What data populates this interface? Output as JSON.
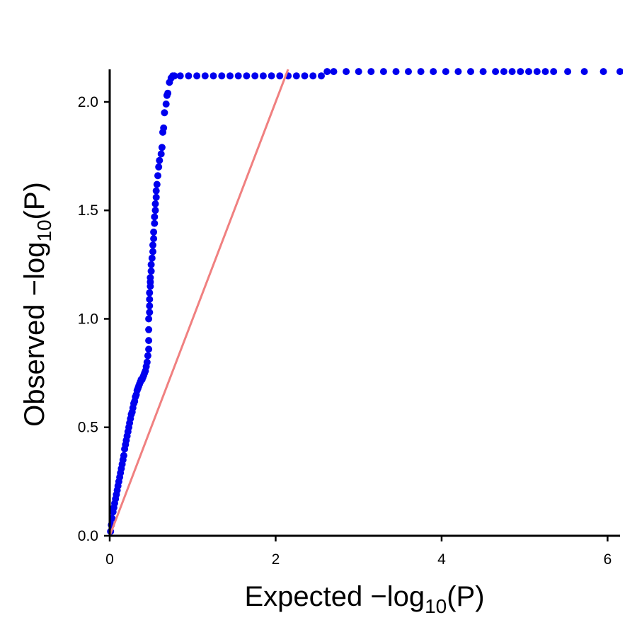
{
  "chart_data": {
    "type": "scatter",
    "title": "",
    "xlabel": {
      "prefix": "Expected  −log",
      "sub": "10",
      "suffix": "(P)"
    },
    "ylabel": {
      "prefix": "Observed  −log",
      "sub": "10",
      "suffix": "(P)"
    },
    "xlim": [
      0,
      6.15
    ],
    "ylim": [
      0,
      2.15
    ],
    "x_ticks": [
      {
        "value": 0,
        "label": "0"
      },
      {
        "value": 2,
        "label": "2"
      },
      {
        "value": 4,
        "label": "4"
      },
      {
        "value": 6,
        "label": "6"
      }
    ],
    "y_ticks": [
      {
        "value": 0.0,
        "label": "0.0"
      },
      {
        "value": 0.5,
        "label": "0.5"
      },
      {
        "value": 1.0,
        "label": "1.0"
      },
      {
        "value": 1.5,
        "label": "1.5"
      },
      {
        "value": 2.0,
        "label": "2.0"
      }
    ],
    "grid": false,
    "point_color": "#0000ee",
    "reference_line": {
      "color": "#f08080",
      "slope": 1,
      "intercept": 0
    },
    "series": [
      {
        "x": [
          0.01,
          0.02,
          0.03,
          0.04,
          0.05,
          0.06,
          0.07,
          0.08,
          0.09,
          0.1,
          0.11,
          0.12,
          0.13,
          0.14,
          0.15,
          0.16,
          0.17,
          0.18,
          0.19,
          0.2,
          0.21,
          0.22,
          0.23,
          0.24,
          0.25,
          0.26,
          0.27,
          0.28,
          0.29,
          0.3,
          0.31,
          0.32,
          0.33,
          0.34,
          0.35,
          0.36,
          0.37,
          0.38,
          0.39,
          0.4,
          0.41,
          0.42,
          0.43,
          0.44,
          0.45,
          0.46,
          0.47,
          0.47,
          0.47,
          0.47,
          0.48,
          0.48,
          0.48,
          0.48,
          0.49,
          0.49,
          0.49,
          0.5,
          0.5,
          0.51,
          0.52,
          0.52,
          0.53,
          0.53,
          0.54,
          0.54,
          0.55,
          0.55,
          0.56,
          0.56,
          0.57,
          0.58,
          0.59,
          0.6,
          0.62,
          0.63,
          0.64,
          0.65,
          0.66,
          0.68,
          0.69,
          0.7,
          0.72,
          0.74,
          0.76,
          0.78,
          0.85,
          0.95,
          1.05,
          1.15,
          1.25,
          1.35,
          1.45,
          1.55,
          1.65,
          1.75,
          1.85,
          1.95,
          2.05,
          2.15,
          2.25,
          2.35,
          2.45,
          2.55,
          2.62,
          2.7,
          2.85,
          3.0,
          3.15,
          3.3,
          3.45,
          3.6,
          3.75,
          3.9,
          4.05,
          4.2,
          4.35,
          4.5,
          4.65,
          4.75,
          4.85,
          4.95,
          5.05,
          5.15,
          5.25,
          5.35,
          5.52,
          5.72,
          5.95,
          6.15
        ],
        "y": [
          0.02,
          0.05,
          0.08,
          0.11,
          0.13,
          0.15,
          0.17,
          0.19,
          0.21,
          0.23,
          0.25,
          0.27,
          0.29,
          0.31,
          0.33,
          0.35,
          0.37,
          0.4,
          0.42,
          0.44,
          0.46,
          0.48,
          0.5,
          0.52,
          0.54,
          0.56,
          0.57,
          0.59,
          0.61,
          0.62,
          0.64,
          0.65,
          0.67,
          0.68,
          0.69,
          0.7,
          0.71,
          0.72,
          0.72,
          0.73,
          0.74,
          0.75,
          0.76,
          0.78,
          0.8,
          0.83,
          0.86,
          0.9,
          0.95,
          1.0,
          1.03,
          1.06,
          1.09,
          1.12,
          1.15,
          1.17,
          1.19,
          1.22,
          1.25,
          1.28,
          1.31,
          1.34,
          1.37,
          1.4,
          1.44,
          1.47,
          1.5,
          1.53,
          1.56,
          1.59,
          1.62,
          1.66,
          1.7,
          1.73,
          1.76,
          1.79,
          1.86,
          1.88,
          1.95,
          1.99,
          2.03,
          2.04,
          2.09,
          2.11,
          2.12,
          2.12,
          2.12,
          2.12,
          2.12,
          2.12,
          2.12,
          2.12,
          2.12,
          2.12,
          2.12,
          2.12,
          2.12,
          2.12,
          2.12,
          2.12,
          2.12,
          2.12,
          2.12,
          2.12,
          2.14,
          2.14,
          2.14,
          2.14,
          2.14,
          2.14,
          2.14,
          2.14,
          2.14,
          2.14,
          2.14,
          2.14,
          2.14,
          2.14,
          2.14,
          2.14,
          2.14,
          2.14,
          2.14,
          2.14,
          2.14,
          2.14,
          2.14,
          2.14,
          2.14,
          2.14
        ]
      }
    ]
  }
}
